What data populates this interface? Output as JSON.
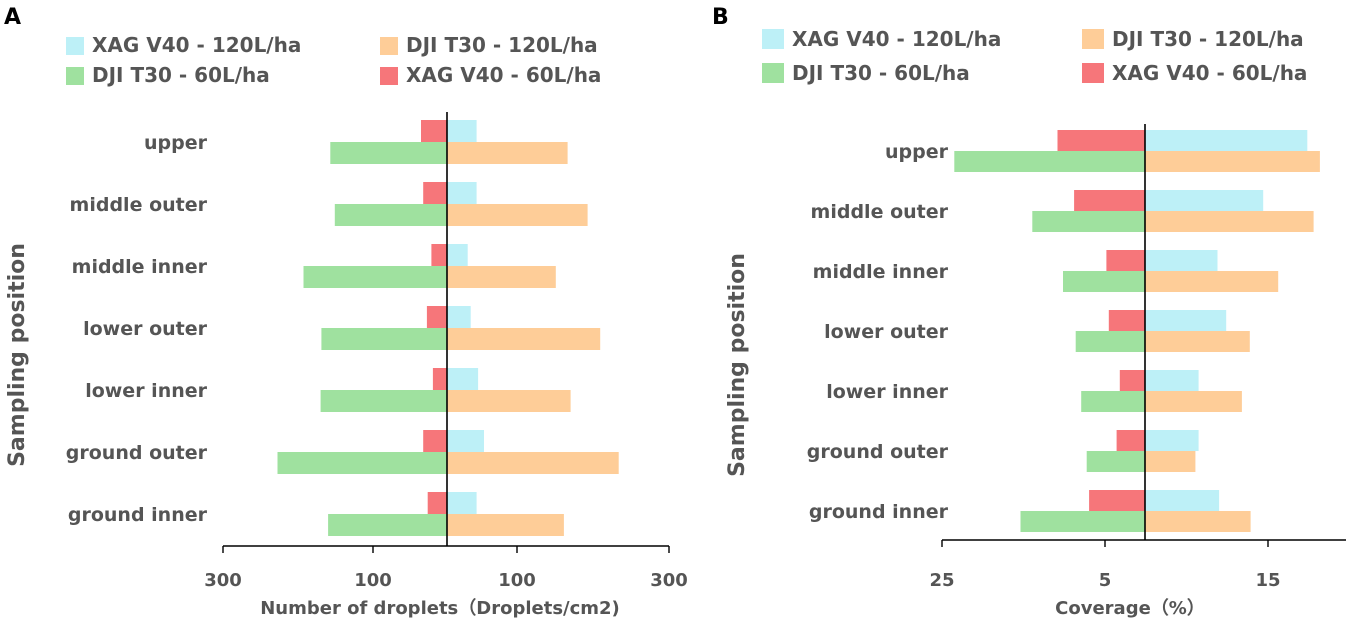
{
  "colors": {
    "xag_120": "#bdf0f7",
    "dji_120": "#fecd98",
    "dji_60": "#9fe19f",
    "xag_60": "#f6767a",
    "axis": "#000000",
    "text": "#555555"
  },
  "chart_data": [
    {
      "panel": "A",
      "type": "bar",
      "orientation": "horizontal-butterfly",
      "ylabel": "Sampling position",
      "xlabel": "Number of droplets（Droplets/cm2)",
      "xticks": [
        "300",
        "100",
        "100",
        "300"
      ],
      "xlim_left": 300,
      "xlim_right": 300,
      "categories": [
        "upper",
        "middle outer",
        "middle inner",
        "lower outer",
        "lower inner",
        "ground outer",
        "ground inner"
      ],
      "legend": [
        "XAG V40 - 120L/ha",
        "DJI T30 - 120L/ha",
        "DJI T30 - 60L/ha",
        "XAG V40 - 60L/ha"
      ],
      "series": [
        {
          "name": "XAG V40 - 120L/ha",
          "side": "right",
          "row": "top",
          "values": [
            40,
            40,
            28,
            32,
            42,
            50,
            40
          ]
        },
        {
          "name": "DJI T30 - 120L/ha",
          "side": "right",
          "row": "bottom",
          "values": [
            163,
            190,
            147,
            207,
            167,
            232,
            158
          ]
        },
        {
          "name": "DJI T30 - 60L/ha",
          "side": "left",
          "row": "bottom",
          "values": [
            157,
            151,
            193,
            169,
            170,
            228,
            160
          ]
        },
        {
          "name": "XAG V40 - 60L/ha",
          "side": "left",
          "row": "top",
          "values": [
            35,
            32,
            21,
            27,
            19,
            32,
            26
          ]
        }
      ]
    },
    {
      "panel": "B",
      "type": "bar",
      "orientation": "horizontal-butterfly",
      "ylabel": "Sampling position",
      "xlabel": "Coverage（%）",
      "xticks": [
        "25",
        "5",
        "15"
      ],
      "xlim_left": 25,
      "xlim_right": 25,
      "categories": [
        "upper",
        "middle outer",
        "middle inner",
        "lower outer",
        "lower inner",
        "ground outer",
        "ground inner"
      ],
      "legend": [
        "XAG V40 - 120L/ha",
        "DJI T30 - 120L/ha",
        "DJI T30 - 60L/ha",
        "XAG V40 - 60L/ha"
      ],
      "series": [
        {
          "name": "XAG V40 - 120L/ha",
          "side": "right",
          "row": "top",
          "values": [
            20.6,
            15.0,
            9.2,
            10.3,
            6.8,
            6.8,
            9.4
          ]
        },
        {
          "name": "DJI T30 - 120L/ha",
          "side": "right",
          "row": "bottom",
          "values": [
            22.2,
            21.4,
            16.9,
            13.3,
            12.3,
            6.4,
            13.4
          ]
        },
        {
          "name": "DJI T30 - 60L/ha",
          "side": "left",
          "row": "bottom",
          "values": [
            24.2,
            14.3,
            10.4,
            8.8,
            8.1,
            7.4,
            15.8
          ]
        },
        {
          "name": "XAG V40 - 60L/ha",
          "side": "left",
          "row": "top",
          "values": [
            11.1,
            9.0,
            4.9,
            4.6,
            3.2,
            3.6,
            7.1
          ]
        }
      ]
    }
  ]
}
